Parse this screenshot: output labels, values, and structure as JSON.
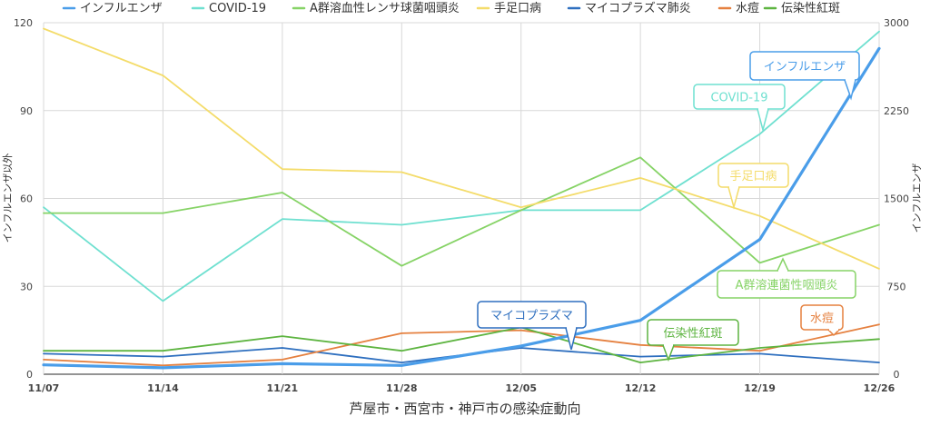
{
  "chart_data": {
    "type": "line",
    "title": "芦屋市・西宮市・神戸市の感染症動向",
    "ylabel_left": "インフルエンザ以外",
    "ylabel_right": "インフルエンザ",
    "ylim_left": [
      0,
      120
    ],
    "ylim_right": [
      0,
      3000
    ],
    "yticks_left": [
      "0",
      "30",
      "60",
      "90",
      "120"
    ],
    "yticks_right": [
      "0",
      "750",
      "1500",
      "2250",
      "3000"
    ],
    "grid": true,
    "legend_position": "top",
    "x": [
      "11/07",
      "11/14",
      "11/21",
      "11/28",
      "12/05",
      "12/12",
      "12/19",
      "12/26"
    ],
    "series": [
      {
        "name": "インフルエンザ",
        "axis": "right",
        "color": "#4a9de9",
        "values": [
          80,
          55,
          90,
          75,
          240,
          460,
          1150,
          2780
        ]
      },
      {
        "name": "COVID-19",
        "axis": "left",
        "color": "#6fe0d0",
        "values": [
          57,
          25,
          53,
          51,
          56,
          56,
          82,
          117
        ]
      },
      {
        "name": "A群溶血性レンサ球菌咽頭炎",
        "axis": "left",
        "color": "#86d366",
        "values": [
          55,
          55,
          62,
          37,
          56,
          74,
          38,
          51
        ]
      },
      {
        "name": "手足口病",
        "axis": "left",
        "color": "#f4dc6a",
        "values": [
          118,
          102,
          70,
          69,
          57,
          67,
          54,
          36
        ]
      },
      {
        "name": "マイコプラズマ肺炎",
        "axis": "left",
        "color": "#2e6fbf",
        "values": [
          7,
          6,
          9,
          4,
          9,
          6,
          7,
          4
        ]
      },
      {
        "name": "水痘",
        "axis": "left",
        "color": "#e5803f",
        "values": [
          5,
          3,
          5,
          14,
          15,
          10,
          8,
          17
        ]
      },
      {
        "name": "伝染性紅斑",
        "axis": "left",
        "color": "#5db440",
        "values": [
          8,
          8,
          13,
          8,
          16,
          4,
          9,
          12
        ]
      }
    ],
    "callouts": [
      {
        "text": "インフルエンザ",
        "color": "#4a9de9"
      },
      {
        "text": "COVID-19",
        "color": "#6fe0d0"
      },
      {
        "text": "手足口病",
        "color": "#f4dc6a"
      },
      {
        "text": "A群溶連菌性咽頭炎",
        "color": "#86d366"
      },
      {
        "text": "マイコプラズマ",
        "color": "#2e6fbf"
      },
      {
        "text": "伝染性紅斑",
        "color": "#5db440"
      },
      {
        "text": "水痘",
        "color": "#e5803f"
      }
    ]
  }
}
